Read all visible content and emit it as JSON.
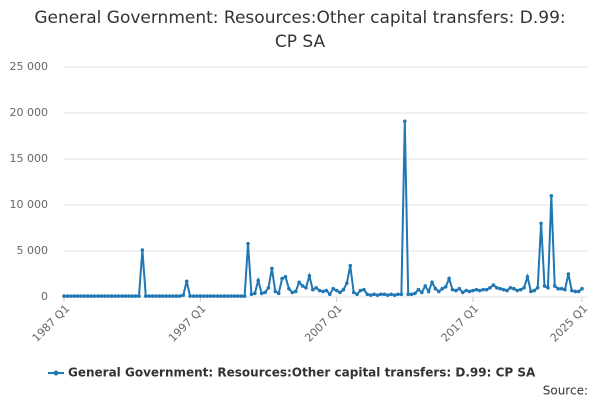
{
  "chart_data": {
    "type": "line",
    "title": "General Government: Resources:Other capital transfers: D.99: CP SA",
    "source": "Source:",
    "categories": [
      "1987 Q1",
      null,
      null,
      null,
      null,
      null,
      null,
      null,
      null,
      null,
      null,
      null,
      null,
      null,
      null,
      null,
      null,
      null,
      null,
      null,
      null,
      null,
      null,
      null,
      null,
      null,
      null,
      null,
      null,
      null,
      null,
      null,
      null,
      null,
      null,
      null,
      null,
      null,
      null,
      null,
      "1997 Q1",
      null,
      null,
      null,
      null,
      null,
      null,
      null,
      null,
      null,
      null,
      null,
      null,
      null,
      null,
      null,
      null,
      null,
      null,
      null,
      null,
      null,
      null,
      null,
      null,
      null,
      null,
      null,
      null,
      null,
      null,
      null,
      null,
      null,
      null,
      null,
      null,
      null,
      null,
      null,
      "2007 Q1",
      null,
      null,
      null,
      null,
      null,
      null,
      null,
      null,
      null,
      null,
      null,
      null,
      null,
      null,
      null,
      null,
      null,
      null,
      null,
      null,
      null,
      null,
      null,
      null,
      null,
      null,
      null,
      null,
      null,
      null,
      null,
      null,
      null,
      null,
      null,
      null,
      null,
      null,
      null,
      "2017 Q1",
      null,
      null,
      null,
      null,
      null,
      null,
      null,
      null,
      null,
      null,
      null,
      null,
      null,
      null,
      null,
      null,
      null,
      null,
      null,
      null,
      null,
      null,
      null,
      null,
      null,
      null,
      null,
      null,
      null,
      null,
      null,
      "2025 Q1"
    ],
    "series": [
      {
        "name": "General Government: Resources:Other capital transfers: D.99: CP SA",
        "color": "#1f77b4",
        "values": [
          100,
          100,
          100,
          100,
          100,
          100,
          100,
          100,
          100,
          100,
          100,
          100,
          100,
          100,
          100,
          100,
          100,
          100,
          100,
          100,
          100,
          100,
          100,
          5100,
          100,
          100,
          100,
          100,
          100,
          100,
          100,
          100,
          100,
          100,
          100,
          200,
          1700,
          100,
          100,
          100,
          100,
          100,
          100,
          100,
          100,
          100,
          100,
          100,
          100,
          100,
          100,
          100,
          100,
          100,
          5800,
          300,
          400,
          1800,
          400,
          500,
          1000,
          3100,
          600,
          400,
          2000,
          2200,
          900,
          500,
          600,
          1600,
          1200,
          1000,
          2300,
          800,
          1000,
          700,
          600,
          700,
          300,
          900,
          700,
          500,
          800,
          1500,
          3400,
          500,
          300,
          700,
          800,
          300,
          200,
          300,
          200,
          300,
          300,
          200,
          300,
          200,
          300,
          300,
          19100,
          300,
          300,
          400,
          800,
          500,
          1200,
          600,
          1600,
          900,
          600,
          900,
          1100,
          2000,
          800,
          700,
          900,
          500,
          700,
          600,
          700,
          800,
          700,
          800,
          800,
          1000,
          1300,
          1000,
          900,
          800,
          700,
          1000,
          900,
          700,
          800,
          1000,
          2200,
          600,
          700,
          1000,
          8000,
          1200,
          1000,
          11000,
          1200,
          900,
          900,
          800,
          2500,
          700,
          600,
          600,
          900
        ]
      }
    ],
    "ylim": [
      0,
      25000
    ],
    "yticks": [
      0,
      {
        "value": 5000,
        "label": "5 000"
      },
      {
        "value": 10000,
        "label": "10 000"
      },
      {
        "value": 15000,
        "label": "15 000"
      },
      {
        "value": 20000,
        "label": "20 000"
      },
      {
        "value": 25000,
        "label": "25 000"
      }
    ],
    "grid": true
  }
}
